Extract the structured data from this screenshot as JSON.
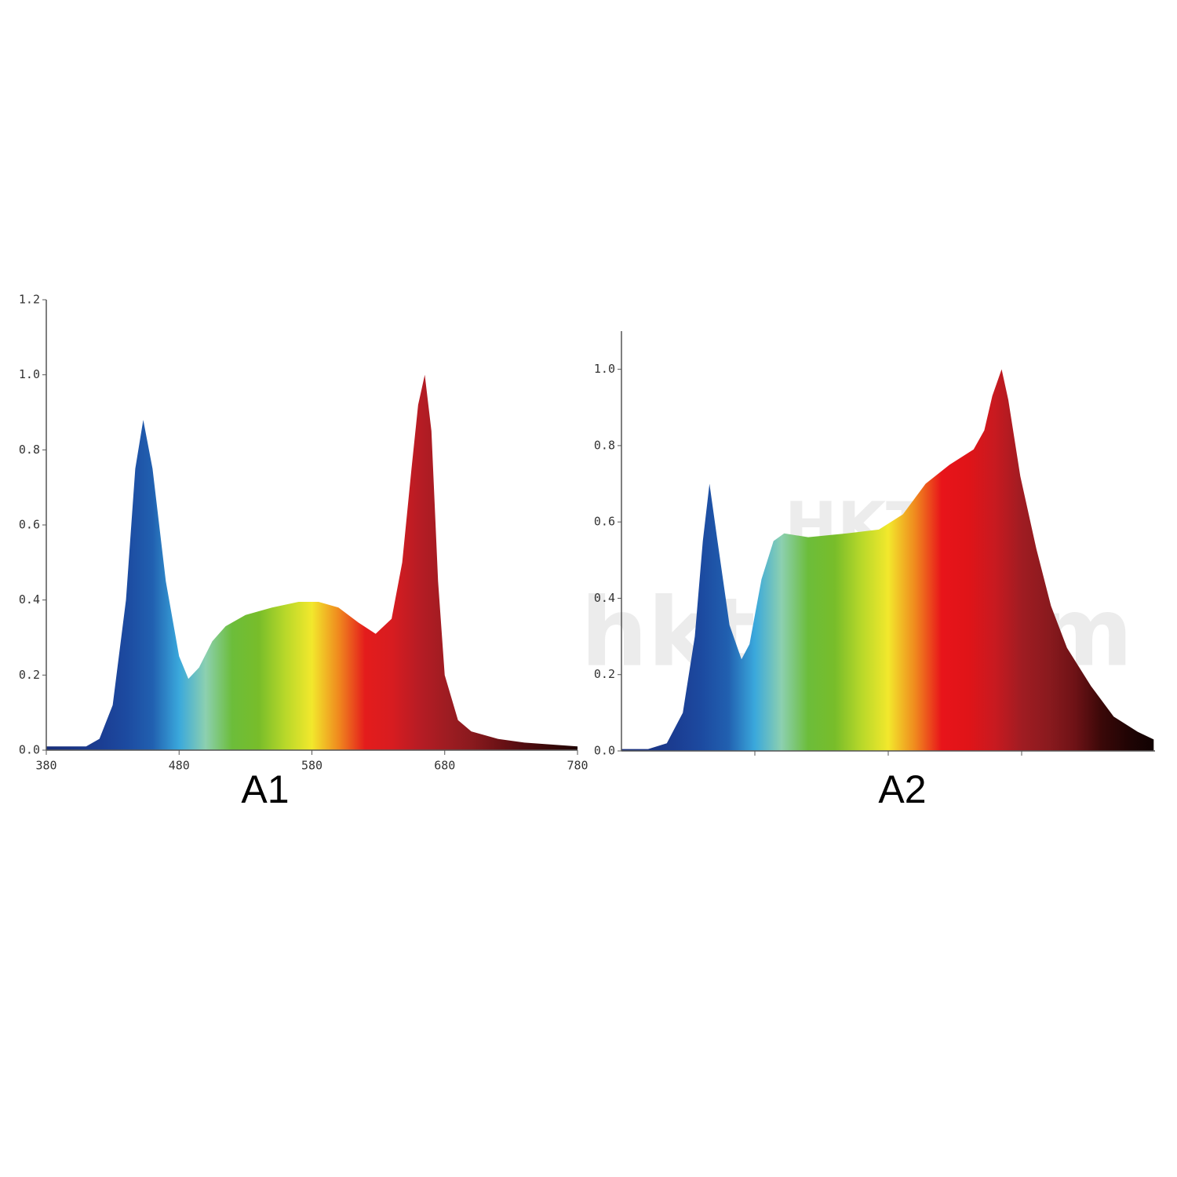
{
  "chart_data": [
    {
      "type": "area",
      "title": "A1",
      "x": [
        380,
        400,
        410,
        420,
        430,
        440,
        447,
        453,
        460,
        470,
        480,
        487,
        495,
        505,
        515,
        530,
        550,
        570,
        585,
        600,
        615,
        628,
        640,
        648,
        655,
        660,
        665,
        670,
        675,
        680,
        690,
        700,
        720,
        740,
        780
      ],
      "values": [
        0.01,
        0.01,
        0.01,
        0.03,
        0.12,
        0.4,
        0.75,
        0.88,
        0.75,
        0.45,
        0.25,
        0.19,
        0.22,
        0.29,
        0.33,
        0.36,
        0.38,
        0.395,
        0.395,
        0.38,
        0.34,
        0.31,
        0.35,
        0.5,
        0.75,
        0.92,
        1.0,
        0.85,
        0.45,
        0.2,
        0.08,
        0.05,
        0.03,
        0.02,
        0.01
      ],
      "gradient": [
        "#1a2f7a",
        "#1a3585",
        "#1b3d92",
        "#1c4aa0",
        "#2160b0",
        "#3aa8dc",
        "#8cd0b0",
        "#6cbd3a",
        "#78bd2a",
        "#b8d82a",
        "#f2e82c",
        "#f08a1e",
        "#e41c1c",
        "#d81c20",
        "#b81c24",
        "#a01c22",
        "#8a1a1e",
        "#6e1216",
        "#500c10",
        "#380808",
        "#200404"
      ],
      "xlim": [
        380,
        780
      ],
      "ylim": [
        0,
        1.2
      ],
      "xticks": [
        380,
        480,
        580,
        680,
        780
      ],
      "xtick_labels": true,
      "yticks": [
        {
          "value": 0,
          "label": "0.0"
        },
        0.2,
        0.4,
        0.6,
        0.8,
        {
          "value": 1,
          "label": "1.0"
        },
        1.2
      ]
    },
    {
      "type": "area",
      "title": "A2",
      "x": [
        380,
        400,
        414,
        426,
        435,
        441,
        446,
        452,
        461,
        470,
        476,
        485,
        494,
        502,
        520,
        549,
        573,
        591,
        608,
        626,
        644,
        652,
        658,
        665,
        670,
        679,
        691,
        702,
        714,
        732,
        749,
        767,
        779
      ],
      "values": [
        0.005,
        0.005,
        0.02,
        0.1,
        0.3,
        0.55,
        0.7,
        0.55,
        0.33,
        0.24,
        0.28,
        0.45,
        0.55,
        0.57,
        0.56,
        0.57,
        0.58,
        0.62,
        0.7,
        0.75,
        0.79,
        0.84,
        0.93,
        1.0,
        0.92,
        0.72,
        0.53,
        0.38,
        0.27,
        0.17,
        0.09,
        0.05,
        0.03
      ],
      "gradient": [
        "#1a2f7a",
        "#1a3585",
        "#1b3d92",
        "#1c4aa0",
        "#2160b0",
        "#3aa8dc",
        "#8cd0b0",
        "#6cbd3a",
        "#78bd2a",
        "#b8d82a",
        "#f2e82c",
        "#f08a1e",
        "#e8141a",
        "#e01418",
        "#c81a20",
        "#a01c22",
        "#8a1a1e",
        "#6e1216",
        "#3a0808",
        "#200404",
        "#100202"
      ],
      "xlim": [
        380,
        780
      ],
      "ylim": [
        0,
        1.1
      ],
      "xticks": [
        480,
        580,
        680
      ],
      "xtick_labels": false,
      "yticks": [
        {
          "value": 0,
          "label": "0.0"
        },
        0.2,
        0.4,
        0.6,
        0.8,
        {
          "value": 1,
          "label": "1.0"
        }
      ],
      "watermark": [
        "HKTDC",
        "hktdc.com"
      ]
    }
  ]
}
